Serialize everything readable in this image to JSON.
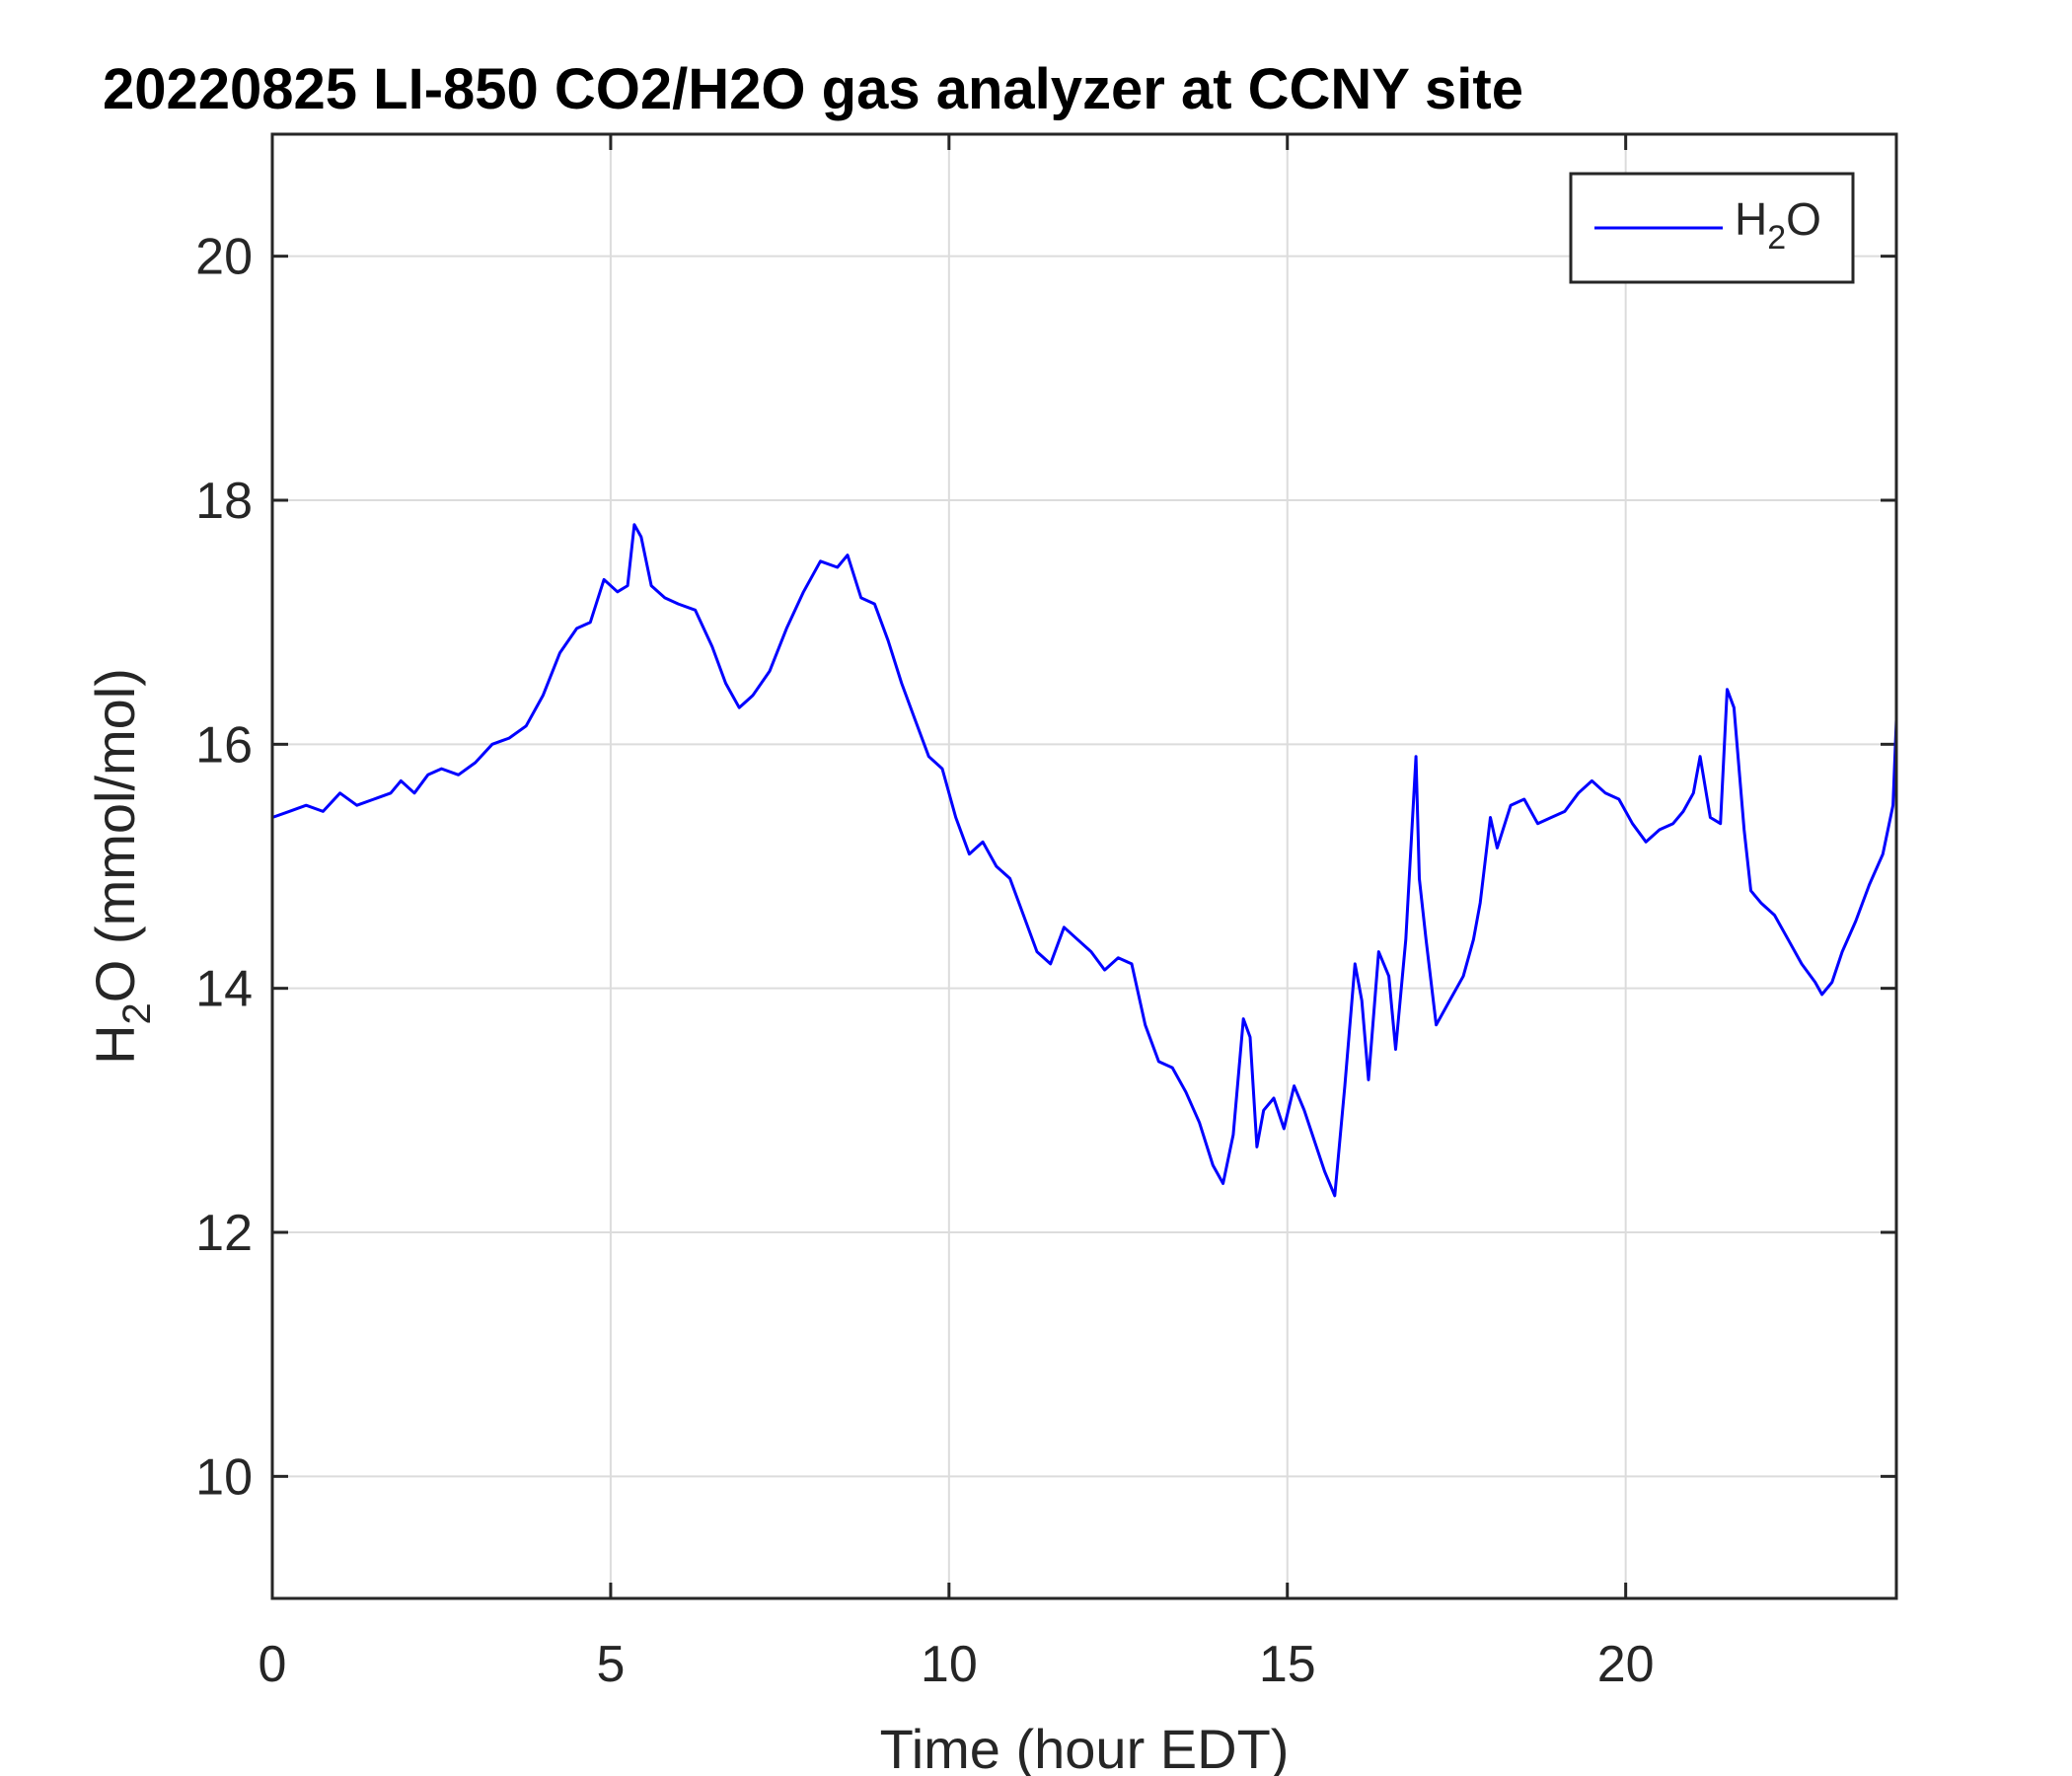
{
  "chart_data": {
    "type": "line",
    "title": "20220825 LI-850 CO2/H2O gas analyzer at CCNY site",
    "xlabel": "Time (hour EDT)",
    "ylabel": {
      "base": "H",
      "sub": "2",
      "rest": "O (mmol/mol)"
    },
    "xlim": [
      0,
      24
    ],
    "ylim": [
      9,
      21
    ],
    "xticks": [
      0,
      5,
      10,
      15,
      20
    ],
    "yticks": [
      10,
      12,
      14,
      16,
      18,
      20
    ],
    "grid": true,
    "legend_position": "top-right",
    "colors": {
      "series": "#0000ff",
      "axis": "#262626",
      "grid": "#dcdcdc"
    },
    "series": [
      {
        "legend": {
          "base": "H",
          "sub": "2",
          "rest": "O"
        },
        "x": [
          0,
          0.25,
          0.5,
          0.75,
          1.0,
          1.25,
          1.5,
          1.75,
          1.9,
          2.1,
          2.3,
          2.5,
          2.75,
          3.0,
          3.25,
          3.5,
          3.75,
          4.0,
          4.25,
          4.5,
          4.7,
          4.9,
          5.1,
          5.25,
          5.35,
          5.45,
          5.6,
          5.8,
          6.0,
          6.25,
          6.5,
          6.7,
          6.9,
          7.1,
          7.35,
          7.6,
          7.85,
          8.1,
          8.35,
          8.5,
          8.7,
          8.9,
          9.1,
          9.3,
          9.5,
          9.7,
          9.9,
          10.1,
          10.3,
          10.5,
          10.7,
          10.9,
          11.1,
          11.3,
          11.5,
          11.7,
          11.9,
          12.1,
          12.3,
          12.5,
          12.7,
          12.9,
          13.1,
          13.3,
          13.5,
          13.7,
          13.9,
          14.05,
          14.2,
          14.35,
          14.45,
          14.55,
          14.65,
          14.8,
          14.95,
          15.1,
          15.25,
          15.4,
          15.55,
          15.7,
          15.85,
          16.0,
          16.1,
          16.2,
          16.35,
          16.5,
          16.6,
          16.75,
          16.9,
          16.95,
          17.05,
          17.2,
          17.4,
          17.6,
          17.75,
          17.85,
          18.0,
          18.1,
          18.3,
          18.5,
          18.7,
          18.9,
          19.1,
          19.3,
          19.5,
          19.7,
          19.9,
          20.1,
          20.3,
          20.5,
          20.7,
          20.85,
          21.0,
          21.1,
          21.25,
          21.4,
          21.5,
          21.6,
          21.75,
          21.85,
          22.0,
          22.2,
          22.4,
          22.6,
          22.8,
          22.9,
          23.05,
          23.2,
          23.4,
          23.6,
          23.8,
          23.95,
          24.0
        ],
        "values": [
          15.4,
          15.45,
          15.5,
          15.45,
          15.6,
          15.5,
          15.55,
          15.6,
          15.7,
          15.6,
          15.75,
          15.8,
          15.75,
          15.85,
          16.0,
          16.05,
          16.15,
          16.4,
          16.75,
          16.95,
          17.0,
          17.35,
          17.25,
          17.3,
          17.8,
          17.7,
          17.3,
          17.2,
          17.15,
          17.1,
          16.8,
          16.5,
          16.3,
          16.4,
          16.6,
          16.95,
          17.25,
          17.5,
          17.45,
          17.55,
          17.2,
          17.15,
          16.85,
          16.5,
          16.2,
          15.9,
          15.8,
          15.4,
          15.1,
          15.2,
          15.0,
          14.9,
          14.6,
          14.3,
          14.2,
          14.5,
          14.4,
          14.3,
          14.15,
          14.25,
          14.2,
          13.7,
          13.4,
          13.35,
          13.15,
          12.9,
          12.55,
          12.4,
          12.8,
          13.75,
          13.6,
          12.7,
          13.0,
          13.1,
          12.85,
          13.2,
          13.0,
          12.75,
          12.5,
          12.3,
          13.2,
          14.2,
          13.9,
          13.25,
          14.3,
          14.1,
          13.5,
          14.4,
          15.9,
          14.9,
          14.4,
          13.7,
          13.9,
          14.1,
          14.4,
          14.7,
          15.4,
          15.15,
          15.5,
          15.55,
          15.35,
          15.4,
          15.45,
          15.6,
          15.7,
          15.6,
          15.55,
          15.35,
          15.2,
          15.3,
          15.35,
          15.45,
          15.6,
          15.9,
          15.4,
          15.35,
          16.45,
          16.3,
          15.3,
          14.8,
          14.7,
          14.6,
          14.4,
          14.2,
          14.05,
          13.95,
          14.05,
          14.3,
          14.55,
          14.85,
          15.1,
          15.5,
          16.2
        ]
      }
    ]
  }
}
